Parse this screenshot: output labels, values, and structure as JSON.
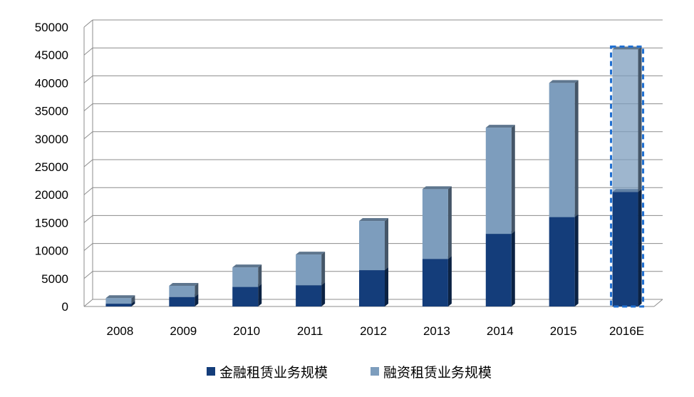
{
  "chart_data": {
    "type": "bar",
    "stacked": true,
    "style": "3d",
    "categories": [
      "2008",
      "2009",
      "2010",
      "2011",
      "2012",
      "2013",
      "2014",
      "2015",
      "2016E"
    ],
    "series": [
      {
        "name": "金融租赁业务规模",
        "color": "#143d7a",
        "values": [
          500,
          1700,
          3500,
          3800,
          6500,
          8500,
          13000,
          16000,
          20500
        ]
      },
      {
        "name": "融资租赁业务规模",
        "color": "#7d9dbd",
        "values": [
          1000,
          2000,
          3500,
          5500,
          8800,
          12500,
          19000,
          24000,
          25500
        ]
      }
    ],
    "highlight_category": "2016E",
    "highlight_color": "#1f6fd1",
    "ylim": [
      0,
      50000
    ],
    "yticks": [
      0,
      5000,
      10000,
      15000,
      20000,
      25000,
      30000,
      35000,
      40000,
      45000,
      50000
    ],
    "grid": true,
    "legend_position": "bottom"
  }
}
